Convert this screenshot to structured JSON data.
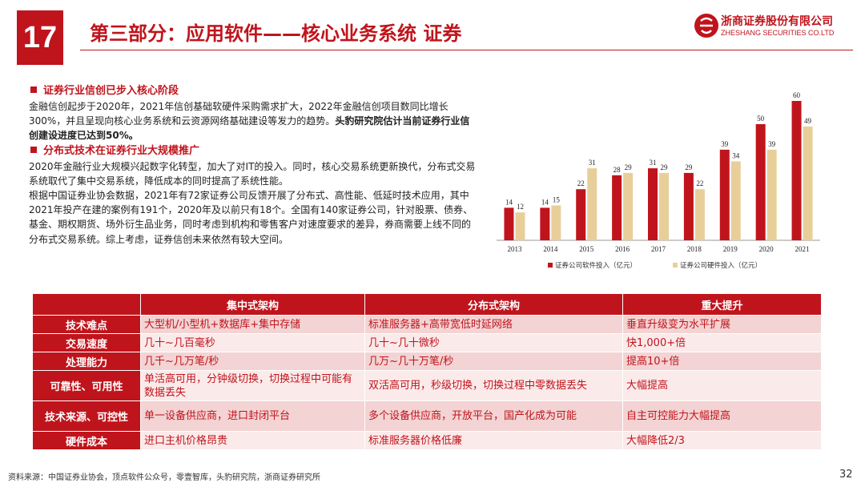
{
  "header": {
    "page_number": "17",
    "title": "第三部分：应用软件——核心业务系统 证券",
    "company_cn": "浙商证券股份有限公司",
    "company_en": "ZHESHANG SECURITIES CO.LTD"
  },
  "text": {
    "section1_heading": "证券行业信创已步入核心阶段",
    "section1_p1": "金融信创起步于2020年，2021年信创基础软硬件采购需求扩大，2022年金融信创项目数同比增长300%，并且呈现向核心业务系统和云资源网络基础建设等发力的趋势。",
    "section1_p1_bold": "头豹研究院估计当前证券行业信创建设进度已达到50%。",
    "section2_heading": "分布式技术在证券行业大规模推广",
    "section2_p1": "2020年金融行业大规模兴起数字化转型，加大了对IT的投入。同时，核心交易系统更新换代，分布式交易系统取代了集中交易系统，降低成本的同时提高了系统性能。",
    "section2_p2": "根据中国证券业协会数据，2021年有72家证券公司反馈开展了分布式、高性能、低延时技术应用，其中2021年投产在建的案例有191个，2020年及以前只有18个。全国有140家证券公司，针对股票、债券、基金、期权期货、场外衍生品业务，同时考虑到机构和零售客户对速度要求的差异，券商需要上线不同的分布式交易系统。综上考虑，证券信创未来依然有较大空间。"
  },
  "chart_data": {
    "type": "bar",
    "categories": [
      "2013",
      "2014",
      "2015",
      "2016",
      "2017",
      "2018",
      "2019",
      "2020",
      "2021"
    ],
    "series": [
      {
        "name": "证券公司软件投入（亿元）",
        "values": [
          14,
          14,
          22,
          28,
          31,
          29,
          39,
          50,
          60
        ],
        "color": "#c0141c"
      },
      {
        "name": "证券公司硬件投入（亿元）",
        "values": [
          12,
          15,
          31,
          29,
          29,
          22,
          34,
          39,
          49
        ],
        "color": "#e8cf9a"
      }
    ],
    "ylim": [
      0,
      60
    ],
    "grid": false,
    "legend_position": "bottom"
  },
  "table": {
    "headers": [
      "",
      "集中式架构",
      "分布式架构",
      "重大提升"
    ],
    "rows": [
      {
        "label": "技术难点",
        "cells": [
          "大型机/小型机+数据库+集中存储",
          "标准服务器+高带宽低时延网络",
          "垂直升级变为水平扩展"
        ]
      },
      {
        "label": "交易速度",
        "cells": [
          "几十~几百毫秒",
          "几十~几十微秒",
          "快1,000+倍"
        ]
      },
      {
        "label": "处理能力",
        "cells": [
          "几千~几万笔/秒",
          "几万~几十万笔/秒",
          "提高10+倍"
        ]
      },
      {
        "label": "可靠性、可用性",
        "cells": [
          "单活高可用，分钟级切换，切换过程中可能有数据丢失",
          "双活高可用，秒级切换，切换过程中零数据丢失",
          "大幅提高"
        ]
      },
      {
        "label": "技术来源、可控性",
        "cells": [
          "单一设备供应商，进口封闭平台",
          "多个设备供应商，开放平台，国产化成为可能",
          "自主可控能力大幅提高"
        ]
      },
      {
        "label": "硬件成本",
        "cells": [
          "进口主机价格昂贵",
          "标准服务器价格低廉",
          "大幅降低2/3"
        ]
      }
    ]
  },
  "footer": {
    "source": "资料来源：中国证券业协会，顶点软件公众号，零壹智库，头豹研究院，浙商证券研究所",
    "page": "32"
  }
}
